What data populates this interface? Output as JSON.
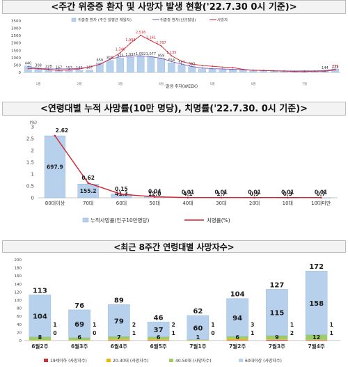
{
  "chart_data": [
    {
      "type": "bar+line",
      "title": "<주간 위중증 환자 및 사망자 발생 현황('22.7.30 0시 기준)>",
      "xlabel": "발생 주차(WEEK)",
      "ylim": [
        0,
        3500
      ],
      "yticks": [
        "3500",
        "3000",
        "2500",
        "2000",
        "1500",
        "1000",
        "500",
        "0"
      ],
      "legend": [
        "위중증 환자 (주간 일평균 재원자)",
        "위중증 환자(신규발생)",
        "사망자"
      ],
      "bar_values": [
        440,
        308,
        228,
        167,
        153,
        142,
        167,
        659,
        818,
        973,
        1037,
        1092,
        1077,
        959,
        654,
        527,
        392,
        244,
        223,
        187,
        181,
        165,
        182,
        109,
        106,
        76,
        76,
        82,
        104,
        144,
        239
      ],
      "bar_labels": [
        "440",
        "308",
        "228",
        "167",
        "153",
        "142",
        "167",
        "659",
        "818",
        "973",
        "1,037",
        "1,092",
        "1,077",
        "959",
        "654",
        "527",
        "392",
        "",
        "",
        "",
        "",
        "",
        "",
        "",
        "",
        "",
        "",
        "",
        "",
        "144",
        "239"
      ],
      "new_values": [
        405,
        278,
        248,
        238,
        239,
        280,
        365,
        555,
        901,
        1066,
        1113,
        1129,
        1065,
        960,
        739,
        569,
        401,
        304,
        253,
        238,
        209,
        187,
        150,
        123,
        115,
        104,
        95,
        110,
        104,
        130,
        224
      ],
      "death_values": [
        266,
        245,
        192,
        131,
        173,
        229,
        368,
        543,
        901,
        1340,
        1993,
        2516,
        2161,
        1797,
        1135,
        745,
        570,
        470,
        416,
        366,
        329,
        206,
        153,
        139,
        106,
        93,
        63,
        53,
        84,
        82,
        172
      ],
      "death_labels": [
        "",
        "",
        "",
        "",
        "",
        "",
        "",
        "",
        "",
        "1,340",
        "1,993",
        "2,516",
        "2,161",
        "1,797",
        "1,135",
        "",
        "",
        "",
        "",
        "",
        "",
        "",
        "",
        "",
        "",
        "",
        "",
        "",
        "",
        "",
        "172"
      ],
      "axis_marks": [
        "1월",
        "2월",
        "3월",
        "4월",
        "5월",
        "6월",
        "7월"
      ]
    },
    {
      "type": "bar+line",
      "title": "<연령대별 누적 사망률(10만 명당), 치명률('22.7.30. 0시 기준)>",
      "yunit": "(%)",
      "ylim": [
        0,
        3
      ],
      "yticks": [
        "3",
        "2.5",
        "2",
        "1.5",
        "1",
        "0.5",
        "0"
      ],
      "categories": [
        "80대이상",
        "70대",
        "60대",
        "50대",
        "40대",
        "30대",
        "20대",
        "10대",
        "10대미만"
      ],
      "bar_values": [
        697.9,
        155.2,
        41.3,
        12.0,
        4.1,
        1.7,
        0.9,
        0.3,
        0.7
      ],
      "bar_labels": [
        "697.9",
        "155.2",
        "41.3",
        "12.0",
        "4.1",
        "1.7",
        "0.9",
        "0.3",
        "0.7"
      ],
      "line_values": [
        2.62,
        0.62,
        0.15,
        0.04,
        0.01,
        0.01,
        0.01,
        0.01,
        0.01
      ],
      "line_labels": [
        "2.62",
        "0.62",
        "0.15",
        "0.04",
        "0.01",
        "0.01",
        "0.01",
        "0.01",
        "0.01"
      ],
      "legend": [
        "누적사망률(인구10만명당)",
        "치명률(%)"
      ]
    },
    {
      "type": "stacked-bar",
      "title": "<최근 8주간 연령대별 사망자수>",
      "ylim": [
        0,
        200
      ],
      "yticks": [
        "200",
        "180",
        "160",
        "140",
        "120",
        "100",
        "80",
        "60",
        "40",
        "20",
        "0"
      ],
      "categories": [
        "6월2주",
        "6월3주",
        "6월4주",
        "6월5주",
        "7월1주",
        "7월2주",
        "7월3주",
        "7월4주"
      ],
      "totals": [
        "113",
        "76",
        "89",
        "46",
        "62",
        "104",
        "127",
        "172"
      ],
      "series": [
        {
          "name": "19세이하 (사망자수)",
          "values": [
            0,
            0,
            1,
            1,
            0,
            1,
            2,
            1
          ]
        },
        {
          "name": "20-30대 (사망자수)",
          "values": [
            1,
            1,
            2,
            2,
            1,
            3,
            1,
            1
          ]
        },
        {
          "name": "40-50대 (사망자수)",
          "values": [
            8,
            6,
            7,
            6,
            1,
            6,
            9,
            12
          ]
        },
        {
          "name": "60대이상 (사망자수)",
          "values": [
            104,
            69,
            79,
            37,
            60,
            94,
            115,
            158
          ]
        }
      ]
    }
  ],
  "colors": {
    "bar": "#b7d0ec",
    "bar_stroke": "#7ea6d6",
    "line_red": "#d2222d",
    "line_purple": "#7b5ab5",
    "seg_19": "#d32f2f",
    "seg_2030": "#f2b705",
    "seg_4050": "#9ccc65",
    "seg_60": "#b7d0ec"
  }
}
